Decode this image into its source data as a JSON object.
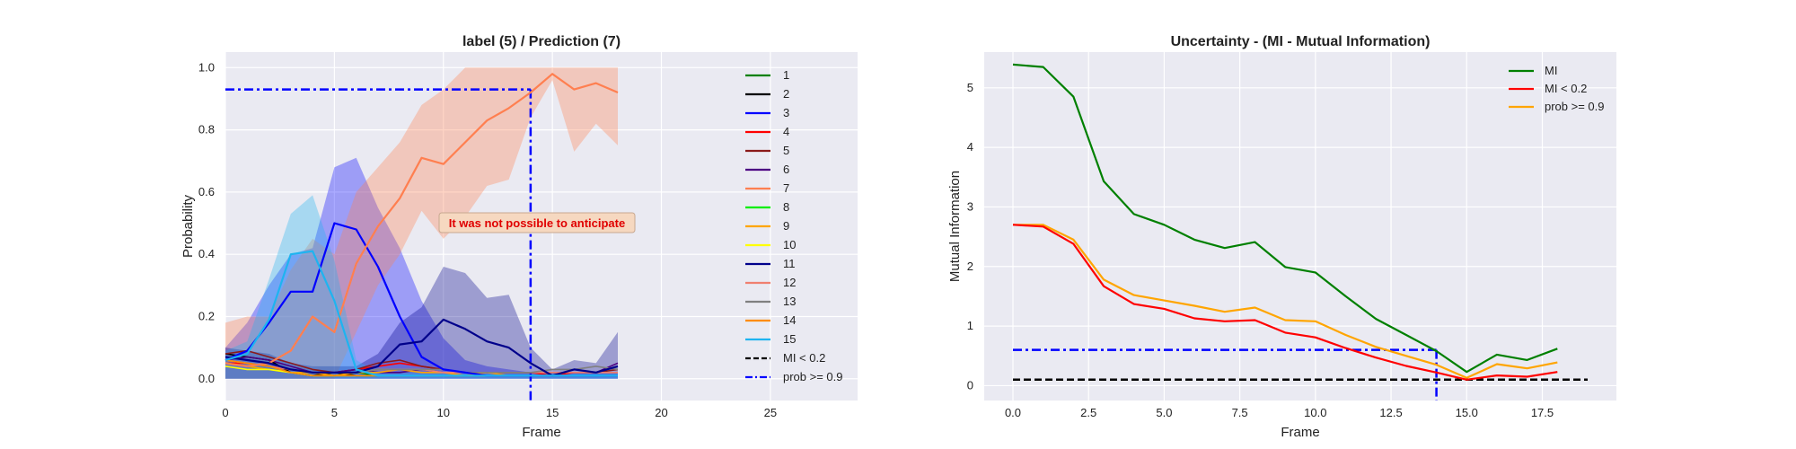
{
  "chart_data": [
    {
      "type": "line",
      "title": "label (5) / Prediction (7)",
      "xlabel": "Frame",
      "ylabel": "Probability",
      "xlim": [
        0,
        29
      ],
      "ylim": [
        -0.07,
        1.05
      ],
      "xticks": [
        0,
        5,
        10,
        15,
        20,
        25
      ],
      "yticks": [
        0.0,
        0.2,
        0.4,
        0.6,
        0.8,
        1.0
      ],
      "x": [
        0,
        1,
        2,
        3,
        4,
        5,
        6,
        7,
        8,
        9,
        10,
        11,
        12,
        13,
        14,
        15,
        16,
        17,
        18
      ],
      "series": [
        {
          "name": "1",
          "color": "#008000",
          "values": [
            0.07,
            0.06,
            0.05,
            0.03,
            0.02,
            0.01,
            0.02,
            0.01,
            0.01,
            0.01,
            0.01,
            0.01,
            0.01,
            0.01,
            0.01,
            0.01,
            0.01,
            0.01,
            0.01
          ]
        },
        {
          "name": "2",
          "color": "#000000",
          "values": [
            0.08,
            0.07,
            0.06,
            0.02,
            0.01,
            0.02,
            0.01,
            0.01,
            0.01,
            0.01,
            0.01,
            0.01,
            0.01,
            0.01,
            0.01,
            0.01,
            0.01,
            0.01,
            0.01
          ]
        },
        {
          "name": "3",
          "color": "#0000ff",
          "values": [
            0.06,
            0.09,
            0.18,
            0.28,
            0.28,
            0.5,
            0.48,
            0.36,
            0.2,
            0.07,
            0.03,
            0.02,
            0.01,
            0.01,
            0.01,
            0.01,
            0.01,
            0.01,
            0.01
          ],
          "band": [
            0.1,
            0.18,
            0.3,
            0.4,
            0.42,
            0.68,
            0.71,
            0.55,
            0.42,
            0.25,
            0.13,
            0.06,
            0.04,
            0.03,
            0.02,
            0.02,
            0.02,
            0.02,
            0.02
          ]
        },
        {
          "name": "4",
          "color": "#ff0000",
          "values": [
            0.05,
            0.05,
            0.04,
            0.03,
            0.02,
            0.02,
            0.03,
            0.04,
            0.05,
            0.04,
            0.03,
            0.02,
            0.02,
            0.02,
            0.02,
            0.01,
            0.02,
            0.02,
            0.02
          ]
        },
        {
          "name": "5",
          "color": "#8b1a1a",
          "values": [
            0.08,
            0.09,
            0.07,
            0.05,
            0.03,
            0.02,
            0.03,
            0.05,
            0.06,
            0.04,
            0.03,
            0.02,
            0.02,
            0.02,
            0.02,
            0.02,
            0.02,
            0.02,
            0.03
          ]
        },
        {
          "name": "6",
          "color": "#4b0082",
          "values": [
            0.06,
            0.07,
            0.06,
            0.04,
            0.02,
            0.02,
            0.03,
            0.02,
            0.02,
            0.03,
            0.02,
            0.02,
            0.02,
            0.02,
            0.02,
            0.02,
            0.02,
            0.02,
            0.05
          ]
        },
        {
          "name": "7",
          "color": "#ff7f50",
          "values": [
            0.05,
            0.04,
            0.05,
            0.09,
            0.2,
            0.15,
            0.37,
            0.49,
            0.58,
            0.71,
            0.69,
            0.76,
            0.83,
            0.87,
            0.92,
            0.98,
            0.93,
            0.95,
            0.92
          ],
          "band": [
            0.18,
            0.2,
            0.2,
            0.35,
            0.45,
            0.4,
            0.6,
            0.68,
            0.76,
            0.88,
            0.93,
            1.0,
            1.0,
            1.0,
            1.0,
            1.0,
            1.0,
            1.0,
            1.0
          ],
          "band_low": [
            0.0,
            0.0,
            0.0,
            0.0,
            0.0,
            0.0,
            0.15,
            0.3,
            0.4,
            0.54,
            0.45,
            0.52,
            0.62,
            0.64,
            0.84,
            0.96,
            0.73,
            0.82,
            0.75
          ]
        },
        {
          "name": "8",
          "color": "#00ee00",
          "values": [
            0.05,
            0.04,
            0.03,
            0.02,
            0.01,
            0.01,
            0.01,
            0.01,
            0.01,
            0.01,
            0.01,
            0.01,
            0.01,
            0.01,
            0.01,
            0.01,
            0.01,
            0.01,
            0.01
          ]
        },
        {
          "name": "9",
          "color": "#ffa500",
          "values": [
            0.05,
            0.04,
            0.03,
            0.02,
            0.02,
            0.01,
            0.02,
            0.02,
            0.03,
            0.02,
            0.02,
            0.01,
            0.02,
            0.01,
            0.01,
            0.01,
            0.01,
            0.01,
            0.01
          ]
        },
        {
          "name": "10",
          "color": "#ffff00",
          "values": [
            0.04,
            0.03,
            0.03,
            0.02,
            0.01,
            0.01,
            0.01,
            0.01,
            0.01,
            0.01,
            0.01,
            0.01,
            0.01,
            0.01,
            0.01,
            0.01,
            0.01,
            0.01,
            0.01
          ]
        },
        {
          "name": "11",
          "color": "#00008b",
          "values": [
            0.07,
            0.06,
            0.05,
            0.03,
            0.02,
            0.02,
            0.02,
            0.04,
            0.11,
            0.12,
            0.19,
            0.16,
            0.12,
            0.1,
            0.05,
            0.01,
            0.03,
            0.02,
            0.04
          ],
          "band": [
            0.1,
            0.09,
            0.08,
            0.05,
            0.04,
            0.04,
            0.04,
            0.08,
            0.18,
            0.23,
            0.36,
            0.34,
            0.26,
            0.27,
            0.1,
            0.03,
            0.06,
            0.05,
            0.15
          ]
        },
        {
          "name": "12",
          "color": "#f08070",
          "values": [
            0.06,
            0.05,
            0.04,
            0.03,
            0.02,
            0.02,
            0.02,
            0.03,
            0.03,
            0.03,
            0.02,
            0.02,
            0.02,
            0.02,
            0.02,
            0.02,
            0.02,
            0.02,
            0.02
          ]
        },
        {
          "name": "13",
          "color": "#808080",
          "values": [
            0.07,
            0.06,
            0.05,
            0.03,
            0.02,
            0.02,
            0.02,
            0.03,
            0.03,
            0.03,
            0.03,
            0.02,
            0.02,
            0.02,
            0.02,
            0.03,
            0.03,
            0.04,
            0.03
          ]
        },
        {
          "name": "14",
          "color": "#ff8c00",
          "values": [
            0.06,
            0.05,
            0.04,
            0.02,
            0.01,
            0.01,
            0.01,
            0.01,
            0.01,
            0.01,
            0.01,
            0.01,
            0.01,
            0.01,
            0.01,
            0.01,
            0.01,
            0.01,
            0.01
          ]
        },
        {
          "name": "15",
          "color": "#1eb4f0",
          "values": [
            0.06,
            0.08,
            0.19,
            0.4,
            0.41,
            0.25,
            0.03,
            0.01,
            0.01,
            0.01,
            0.01,
            0.01,
            0.01,
            0.01,
            0.01,
            0.01,
            0.01,
            0.01,
            0.01
          ],
          "band": [
            0.09,
            0.12,
            0.32,
            0.53,
            0.59,
            0.38,
            0.06,
            0.02,
            0.02,
            0.02,
            0.02,
            0.02,
            0.02,
            0.02,
            0.02,
            0.02,
            0.02,
            0.02,
            0.02
          ]
        }
      ],
      "hlines": [
        {
          "name": "MI < 0.2",
          "style": "dashed",
          "color": "#000000",
          "y": null
        },
        {
          "name": "prob >= 0.9",
          "style": "dashdot",
          "color": "#0000ff",
          "y": 0.93,
          "x_from": 0,
          "x_to": 14,
          "vline_x": 14
        }
      ],
      "annotation": "It was not possible to anticipate",
      "legend": "right"
    },
    {
      "type": "line",
      "title": "Uncertainty - (MI - Mutual Information)",
      "xlabel": "Frame",
      "ylabel": "Mutual Information",
      "xlim": [
        -0.95,
        19.95
      ],
      "ylim": [
        -0.25,
        5.6
      ],
      "xticks": [
        0.0,
        2.5,
        5.0,
        7.5,
        10.0,
        12.5,
        15.0,
        17.5
      ],
      "xtick_labels": [
        "0.0",
        "2.5",
        "5.0",
        "7.5",
        "10.0",
        "12.5",
        "15.0",
        "17.5"
      ],
      "yticks": [
        0,
        1,
        2,
        3,
        4,
        5
      ],
      "x": [
        0,
        1,
        2,
        3,
        4,
        5,
        6,
        7,
        8,
        9,
        10,
        11,
        12,
        13,
        14,
        15,
        16,
        17,
        18
      ],
      "series": [
        {
          "name": "MI",
          "color": "#008000",
          "values": [
            5.39,
            5.35,
            4.85,
            3.43,
            2.88,
            2.7,
            2.45,
            2.31,
            2.41,
            1.99,
            1.9,
            1.5,
            1.12,
            0.85,
            0.58,
            0.23,
            0.52,
            0.43,
            0.62
          ]
        },
        {
          "name": "MI < 0.2",
          "color": "#ff0000",
          "values": [
            2.7,
            2.67,
            2.38,
            1.67,
            1.37,
            1.29,
            1.13,
            1.08,
            1.1,
            0.89,
            0.81,
            0.63,
            0.47,
            0.33,
            0.22,
            0.1,
            0.17,
            0.15,
            0.23
          ]
        },
        {
          "name": "prob >= 0.9",
          "color": "#ffa500",
          "values": [
            2.7,
            2.7,
            2.45,
            1.78,
            1.52,
            1.43,
            1.34,
            1.24,
            1.31,
            1.1,
            1.08,
            0.85,
            0.65,
            0.5,
            0.35,
            0.13,
            0.36,
            0.29,
            0.39
          ]
        }
      ],
      "hlines": [
        {
          "style": "dashed",
          "color": "#000000",
          "y": 0.1,
          "x_from": 0,
          "x_to": 19
        },
        {
          "style": "dashdot",
          "color": "#0000ff",
          "y": 0.6,
          "x_from": 0,
          "x_to": 14,
          "vline_x": 14
        }
      ],
      "legend": "top-right"
    }
  ]
}
